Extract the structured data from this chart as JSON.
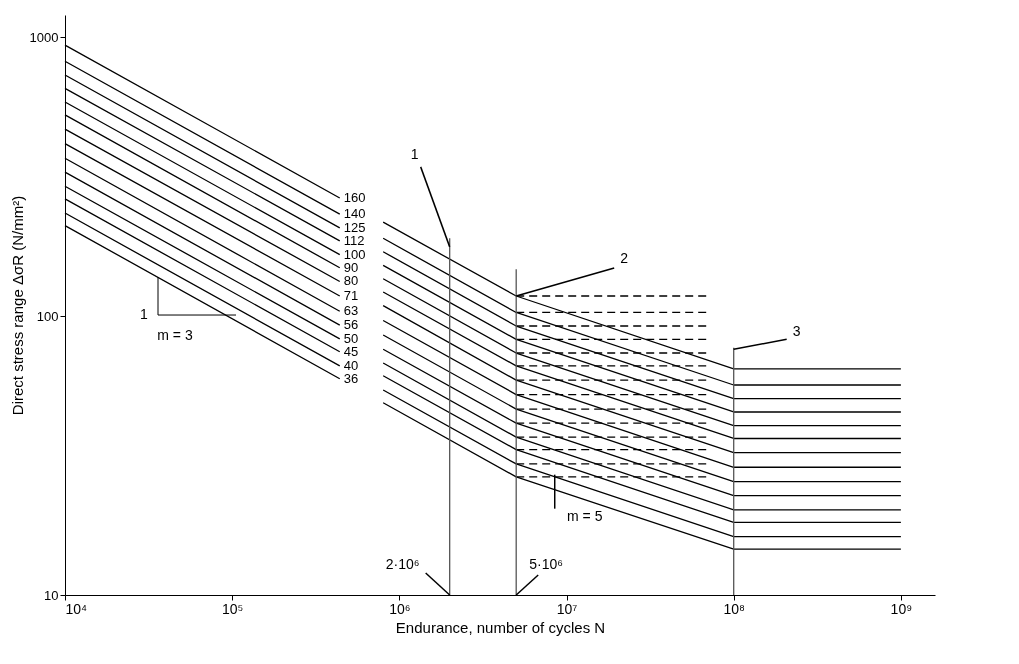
{
  "chart_data": {
    "type": "line",
    "xlabel": "Endurance, number of cycles N",
    "ylabel": "Direct stress range ΔσR (N/mm²)",
    "log": "xy",
    "grid": false,
    "marker": "none",
    "line_style": "solid",
    "xlim": [
      10000,
      1600000000
    ],
    "ylim": [
      10,
      1200
    ],
    "xticks": [
      {
        "value": 10000,
        "label": "10⁴"
      },
      {
        "value": 100000,
        "label": "10⁵"
      },
      {
        "value": 1000000,
        "label": "10⁶"
      },
      {
        "value": 10000000,
        "label": "10⁷"
      },
      {
        "value": 100000000,
        "label": "10⁸"
      },
      {
        "value": 1000000000,
        "label": "10⁹"
      }
    ],
    "yticks": [
      10,
      100,
      1000
    ],
    "x": [
      10000,
      440000,
      600000,
      800000,
      5000000,
      100000000,
      1000000000
    ],
    "series": [
      {
        "name": "160",
        "color": "#000000",
        "values": [
          936,
          265,
          null,
          217,
          118,
          64.7,
          64.7
        ]
      },
      {
        "name": "140",
        "color": "#000000",
        "values": [
          819,
          232,
          null,
          190,
          103,
          56.6,
          56.6
        ]
      },
      {
        "name": "125",
        "color": "#000000",
        "values": [
          731,
          207,
          null,
          170,
          92.1,
          50.6,
          50.6
        ]
      },
      {
        "name": "112",
        "color": "#000000",
        "values": [
          655,
          186,
          null,
          152,
          82.5,
          45.3,
          45.3
        ]
      },
      {
        "name": "100",
        "color": "#000000",
        "values": [
          585,
          166,
          null,
          136,
          73.7,
          40.5,
          40.5
        ]
      },
      {
        "name": "90",
        "color": "#000000",
        "values": [
          526,
          149,
          null,
          122,
          66.3,
          36.4,
          36.4
        ]
      },
      {
        "name": "80",
        "color": "#000000",
        "values": [
          468,
          133,
          null,
          109,
          58.9,
          32.4,
          32.4
        ]
      },
      {
        "name": "71",
        "color": "#000000",
        "values": [
          415,
          118,
          null,
          96.4,
          52.3,
          28.7,
          28.7
        ]
      },
      {
        "name": "63",
        "color": "#000000",
        "values": [
          368,
          104,
          null,
          85.5,
          46.4,
          25.5,
          25.5
        ]
      },
      {
        "name": "56",
        "color": "#000000",
        "values": [
          328,
          92.8,
          null,
          76.0,
          41.3,
          22.7,
          22.7
        ]
      },
      {
        "name": "50",
        "color": "#000000",
        "values": [
          292,
          82.8,
          null,
          67.9,
          36.8,
          20.2,
          20.2
        ]
      },
      {
        "name": "45",
        "color": "#000000",
        "values": [
          263,
          74.5,
          null,
          61.1,
          33.2,
          18.2,
          18.2
        ]
      },
      {
        "name": "40",
        "color": "#000000",
        "values": [
          234,
          66.3,
          null,
          54.3,
          29.5,
          16.2,
          16.2
        ]
      },
      {
        "name": "36",
        "color": "#000000",
        "values": [
          211,
          59.6,
          null,
          48.9,
          26.5,
          14.6,
          14.6
        ]
      },
      {
        "color": "#000000",
        "line_style": "dashed",
        "x": [
          5000000,
          70000000
        ],
        "values": [
          118,
          118
        ]
      },
      {
        "color": "#000000",
        "line_style": "dashed",
        "x": [
          5000000,
          70000000
        ],
        "values": [
          103,
          103
        ]
      },
      {
        "color": "#000000",
        "line_style": "dashed",
        "x": [
          5000000,
          70000000
        ],
        "values": [
          92.1,
          92.1
        ]
      },
      {
        "color": "#000000",
        "line_style": "dashed",
        "x": [
          5000000,
          70000000
        ],
        "values": [
          82.5,
          82.5
        ]
      },
      {
        "color": "#000000",
        "line_style": "dashed",
        "x": [
          5000000,
          70000000
        ],
        "values": [
          73.7,
          73.7
        ]
      },
      {
        "color": "#000000",
        "line_style": "dashed",
        "x": [
          5000000,
          70000000
        ],
        "values": [
          66.3,
          66.3
        ]
      },
      {
        "color": "#000000",
        "line_style": "dashed",
        "x": [
          5000000,
          70000000
        ],
        "values": [
          58.9,
          58.9
        ]
      },
      {
        "color": "#000000",
        "line_style": "dashed",
        "x": [
          5000000,
          70000000
        ],
        "values": [
          52.3,
          52.3
        ]
      },
      {
        "color": "#000000",
        "line_style": "dashed",
        "x": [
          5000000,
          70000000
        ],
        "values": [
          46.4,
          46.4
        ]
      },
      {
        "color": "#000000",
        "line_style": "dashed",
        "x": [
          5000000,
          70000000
        ],
        "values": [
          41.3,
          41.3
        ]
      },
      {
        "color": "#000000",
        "line_style": "dashed",
        "x": [
          5000000,
          70000000
        ],
        "values": [
          36.8,
          36.8
        ]
      },
      {
        "color": "#000000",
        "line_style": "dashed",
        "x": [
          5000000,
          70000000
        ],
        "values": [
          33.2,
          33.2
        ]
      },
      {
        "color": "#000000",
        "line_style": "dashed",
        "x": [
          5000000,
          70000000
        ],
        "values": [
          29.5,
          29.5
        ]
      },
      {
        "color": "#000000",
        "line_style": "dashed",
        "x": [
          5000000,
          70000000
        ],
        "values": [
          26.5,
          26.5
        ]
      },
      {
        "color": "#555555",
        "x": [
          2000000,
          2000000
        ],
        "values": [
          10,
          190
        ]
      },
      {
        "color": "#555555",
        "x": [
          5000000,
          5000000
        ],
        "values": [
          10,
          147
        ]
      },
      {
        "color": "#555555",
        "x": [
          100000000,
          100000000
        ],
        "values": [
          10,
          77
        ]
      }
    ],
    "annotations": [
      {
        "text": "2·10⁶",
        "x": 2000000,
        "y": 10
      },
      {
        "text": "5·10⁶",
        "x": 5000000,
        "y": 10
      },
      {
        "text": "1",
        "x": 2000000,
        "y": 177
      },
      {
        "text": "2",
        "x": 5000000,
        "y": 118
      },
      {
        "text": "3",
        "x": 100000000,
        "y": 76
      },
      {
        "text": "m = 5",
        "x": 8500000,
        "y": 27
      },
      {
        "text": "1",
        "x": 36000,
        "y": 138
      },
      "m = 3"
    ]
  }
}
